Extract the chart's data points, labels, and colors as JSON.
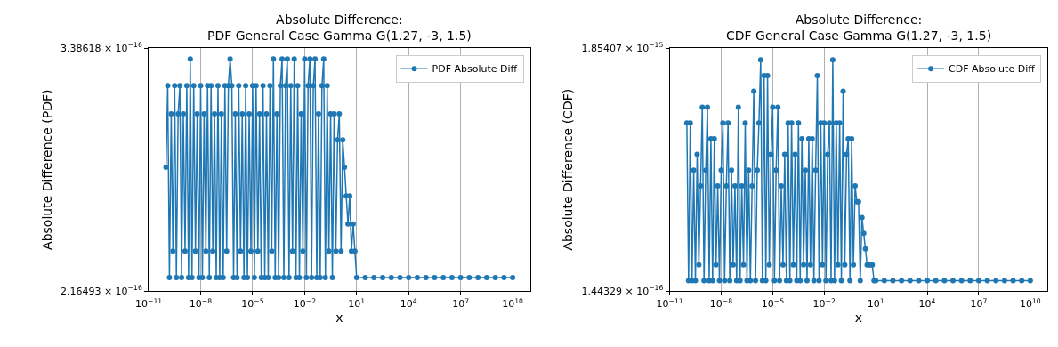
{
  "chart_data": [
    {
      "type": "line",
      "title": "Absolute Difference:\nPDF General Case Gamma G(1.27, -3, 1.5)",
      "xlabel": "x",
      "ylabel": "Absolute Difference (PDF)",
      "log": "xy",
      "grid": "x",
      "legend": "top right",
      "marker": "circle",
      "xlim": [
        1e-11,
        100000000000.0
      ],
      "xticks": [
        {
          "value": 1e-11,
          "label": "10$^{−11}$"
        },
        {
          "value": 1e-08,
          "label": "10$^{−8}$"
        },
        {
          "value": 1e-05,
          "label": "10$^{−5}$"
        },
        {
          "value": 0.01,
          "label": "10$^{−2}$"
        },
        {
          "value": 10,
          "label": "10$^{1}$"
        },
        {
          "value": 10000.0,
          "label": "10$^{4}$"
        },
        {
          "value": 10000000.0,
          "label": "10$^{7}$"
        },
        {
          "value": 10000000000.0,
          "label": "10$^{10}$"
        }
      ],
      "ylim": [
        2.16493e-16,
        3.38618e-16
      ],
      "yticks": [
        {
          "value": 2.16493e-16,
          "label": "2.16493 × 10$^{−16}$"
        },
        {
          "value": 3.38618e-16,
          "label": "3.38618 × 10$^{−16}$"
        }
      ],
      "x": [
        1e-10,
        1.26e-10,
        1.58e-10,
        2e-10,
        2.51e-10,
        3.16e-10,
        3.98e-10,
        5.01e-10,
        6.31e-10,
        7.94e-10,
        1e-09,
        1.26e-09,
        1.58e-09,
        2e-09,
        2.51e-09,
        3.16e-09,
        3.98e-09,
        5.01e-09,
        6.31e-09,
        7.94e-09,
        1e-08,
        1.26e-08,
        1.58e-08,
        2e-08,
        2.51e-08,
        3.16e-08,
        3.98e-08,
        5.01e-08,
        6.31e-08,
        7.94e-08,
        1e-07,
        1.26e-07,
        1.58e-07,
        2e-07,
        2.51e-07,
        3.16e-07,
        3.98e-07,
        5.01e-07,
        6.31e-07,
        7.94e-07,
        1e-06,
        1.26e-06,
        1.58e-06,
        2e-06,
        2.51e-06,
        3.16e-06,
        3.98e-06,
        5.01e-06,
        6.31e-06,
        7.94e-06,
        1e-05,
        1.26e-05,
        1.58e-05,
        2e-05,
        2.51e-05,
        3.16e-05,
        3.98e-05,
        5.01e-05,
        6.31e-05,
        7.94e-05,
        0.0001,
        0.000126,
        0.000158,
        0.0002,
        0.000251,
        0.000316,
        0.000398,
        0.000501,
        0.000631,
        0.000794,
        0.001,
        0.00126,
        0.00158,
        0.002,
        0.00251,
        0.00316,
        0.00398,
        0.00501,
        0.00631,
        0.00794,
        0.01,
        0.0126,
        0.0158,
        0.02,
        0.0251,
        0.0316,
        0.0398,
        0.0501,
        0.0631,
        0.0794,
        0.1,
        0.126,
        0.158,
        0.2,
        0.251,
        0.316,
        0.398,
        0.501,
        0.631,
        0.794,
        1,
        1.26,
        1.58,
        2,
        2.51,
        3.16,
        3.98,
        5.01,
        6.31,
        7.94,
        10,
        31.6,
        100,
        316,
        1000,
        3160,
        10000.0,
        31600.0,
        100000.0,
        316000.0,
        1000000.0,
        3160000.0,
        10000000.0,
        31600000.0,
        100000000.0,
        316000000.0,
        1000000000.0,
        3160000000.0,
        10000000000.0
      ],
      "series": [
        {
          "name": "PDF Absolute Diff",
          "color": "#1f77b4",
          "values": [
            2.72e-16,
            3.16e-16,
            2.22e-16,
            3e-16,
            2.33e-16,
            3.16e-16,
            2.22e-16,
            3e-16,
            3.16e-16,
            2.22e-16,
            3e-16,
            2.33e-16,
            3.16e-16,
            2.22e-16,
            3.32e-16,
            2.22e-16,
            3.16e-16,
            2.33e-16,
            3e-16,
            2.22e-16,
            3.16e-16,
            2.22e-16,
            3e-16,
            2.33e-16,
            3.16e-16,
            2.22e-16,
            3.16e-16,
            2.33e-16,
            3e-16,
            2.22e-16,
            3.16e-16,
            2.22e-16,
            3e-16,
            2.22e-16,
            3.16e-16,
            2.33e-16,
            3.16e-16,
            3.32e-16,
            3.16e-16,
            2.22e-16,
            3e-16,
            2.22e-16,
            3.16e-16,
            2.33e-16,
            3e-16,
            2.22e-16,
            3.16e-16,
            2.22e-16,
            3e-16,
            2.33e-16,
            3.16e-16,
            2.22e-16,
            3.16e-16,
            2.33e-16,
            3e-16,
            2.22e-16,
            3.16e-16,
            2.22e-16,
            3e-16,
            2.22e-16,
            3.16e-16,
            2.33e-16,
            3.32e-16,
            2.22e-16,
            3e-16,
            2.22e-16,
            3.16e-16,
            3.32e-16,
            2.22e-16,
            3.16e-16,
            3.32e-16,
            2.22e-16,
            3.16e-16,
            2.33e-16,
            3.32e-16,
            2.22e-16,
            3.16e-16,
            2.22e-16,
            3e-16,
            2.33e-16,
            3.32e-16,
            2.22e-16,
            3.16e-16,
            3.32e-16,
            2.22e-16,
            3.16e-16,
            3.32e-16,
            2.22e-16,
            3e-16,
            2.22e-16,
            3.16e-16,
            3.32e-16,
            2.22e-16,
            3.16e-16,
            2.33e-16,
            3e-16,
            2.22e-16,
            3e-16,
            2.33e-16,
            2.86e-16,
            3e-16,
            2.33e-16,
            2.86e-16,
            2.72e-16,
            2.58e-16,
            2.45e-16,
            2.58e-16,
            2.33e-16,
            2.45e-16,
            2.33e-16,
            2.22e-16,
            2.22e-16,
            2.22e-16,
            2.22e-16,
            2.22e-16,
            2.22e-16,
            2.22e-16,
            2.22e-16,
            2.22e-16,
            2.22e-16,
            2.22e-16,
            2.22e-16,
            2.22e-16,
            2.22e-16,
            2.22e-16,
            2.22e-16,
            2.22e-16,
            2.22e-16,
            2.22e-16
          ]
        }
      ]
    },
    {
      "type": "line",
      "title": "Absolute Difference:\nCDF General Case Gamma G(1.27, -3, 1.5)",
      "xlabel": "x",
      "ylabel": "Absolute Difference (CDF)",
      "log": "xy",
      "grid": "x",
      "legend": "top right",
      "marker": "circle",
      "xlim": [
        1e-11,
        100000000000.0
      ],
      "xticks": [
        {
          "value": 1e-11,
          "label": "10$^{−11}$"
        },
        {
          "value": 1e-08,
          "label": "10$^{−8}$"
        },
        {
          "value": 1e-05,
          "label": "10$^{−5}$"
        },
        {
          "value": 0.01,
          "label": "10$^{−2}$"
        },
        {
          "value": 10,
          "label": "10$^{1}$"
        },
        {
          "value": 10000.0,
          "label": "10$^{4}$"
        },
        {
          "value": 10000000.0,
          "label": "10$^{7}$"
        },
        {
          "value": 10000000000.0,
          "label": "10$^{10}$"
        }
      ],
      "ylim": [
        1.44329e-16,
        1.85407e-15
      ],
      "yticks": [
        {
          "value": 1.44329e-16,
          "label": "1.44329 × 10$^{−16}$"
        },
        {
          "value": 1.85407e-15,
          "label": "1.85407 × 10$^{−15}$"
        }
      ],
      "x": [
        1e-10,
        1.26e-10,
        1.58e-10,
        2e-10,
        2.51e-10,
        3.16e-10,
        3.98e-10,
        5.01e-10,
        6.31e-10,
        7.94e-10,
        1e-09,
        1.26e-09,
        1.58e-09,
        2e-09,
        2.51e-09,
        3.16e-09,
        3.98e-09,
        5.01e-09,
        6.31e-09,
        7.94e-09,
        1e-08,
        1.26e-08,
        1.58e-08,
        2e-08,
        2.51e-08,
        3.16e-08,
        3.98e-08,
        5.01e-08,
        6.31e-08,
        7.94e-08,
        1e-07,
        1.26e-07,
        1.58e-07,
        2e-07,
        2.51e-07,
        3.16e-07,
        3.98e-07,
        5.01e-07,
        6.31e-07,
        7.94e-07,
        1e-06,
        1.26e-06,
        1.58e-06,
        2e-06,
        2.51e-06,
        3.16e-06,
        3.98e-06,
        5.01e-06,
        6.31e-06,
        7.94e-06,
        1e-05,
        1.26e-05,
        1.58e-05,
        2e-05,
        2.51e-05,
        3.16e-05,
        3.98e-05,
        5.01e-05,
        6.31e-05,
        7.94e-05,
        0.0001,
        0.000126,
        0.000158,
        0.0002,
        0.000251,
        0.000316,
        0.000398,
        0.000501,
        0.000631,
        0.000794,
        0.001,
        0.00126,
        0.00158,
        0.002,
        0.00251,
        0.00316,
        0.00398,
        0.00501,
        0.00631,
        0.00794,
        0.01,
        0.0126,
        0.0158,
        0.02,
        0.0251,
        0.0316,
        0.0398,
        0.0501,
        0.0631,
        0.0794,
        0.1,
        0.126,
        0.158,
        0.2,
        0.251,
        0.316,
        0.398,
        0.501,
        0.631,
        0.794,
        1,
        1.26,
        1.58,
        2,
        2.51,
        3.16,
        3.98,
        5.01,
        6.31,
        7.94,
        10,
        31.6,
        100,
        316,
        1000,
        3160,
        10000.0,
        31600.0,
        100000.0,
        316000.0,
        1000000.0,
        3160000.0,
        10000000.0,
        31600000.0,
        100000000.0,
        316000000.0,
        1000000000.0,
        3160000000.0,
        10000000000.0
      ],
      "series": [
        {
          "name": "CDF Absolute Diff",
          "color": "#1f77b4",
          "values": [
            8.45e-16,
            1.61e-16,
            8.45e-16,
            1.61e-16,
            5.14e-16,
            1.61e-16,
            6.07e-16,
            1.9e-16,
            4.36e-16,
            9.97e-16,
            1.61e-16,
            5.14e-16,
            9.97e-16,
            1.61e-16,
            7.16e-16,
            1.61e-16,
            7.16e-16,
            1.9e-16,
            4.36e-16,
            1.61e-16,
            5.14e-16,
            8.45e-16,
            1.61e-16,
            4.36e-16,
            8.45e-16,
            1.61e-16,
            5.14e-16,
            1.9e-16,
            4.36e-16,
            1.61e-16,
            9.97e-16,
            1.61e-16,
            4.36e-16,
            1.9e-16,
            8.45e-16,
            1.61e-16,
            5.14e-16,
            1.61e-16,
            4.36e-16,
            1.18e-15,
            1.61e-16,
            5.14e-16,
            8.45e-16,
            1.64e-15,
            1.61e-16,
            1.39e-15,
            1.61e-16,
            1.39e-15,
            1.9e-16,
            6.07e-16,
            9.97e-16,
            1.61e-16,
            5.14e-16,
            9.97e-16,
            1.61e-16,
            4.36e-16,
            1.9e-16,
            6.07e-16,
            1.61e-16,
            8.45e-16,
            1.61e-16,
            8.45e-16,
            1.9e-16,
            6.07e-16,
            1.61e-16,
            8.45e-16,
            1.61e-16,
            7.16e-16,
            1.9e-16,
            5.14e-16,
            1.61e-16,
            7.16e-16,
            1.9e-16,
            7.16e-16,
            1.61e-16,
            5.14e-16,
            1.39e-15,
            1.61e-16,
            8.45e-16,
            1.9e-16,
            8.45e-16,
            1.61e-16,
            6.07e-16,
            8.45e-16,
            1.61e-16,
            1.64e-15,
            1.61e-16,
            8.45e-16,
            1.9e-16,
            8.45e-16,
            1.61e-16,
            1.18e-15,
            1.9e-16,
            6.07e-16,
            7.16e-16,
            1.61e-16,
            7.16e-16,
            1.9e-16,
            4.36e-16,
            3.69e-16,
            3.69e-16,
            1.61e-16,
            3.13e-16,
            2.65e-16,
            2.25e-16,
            1.9e-16,
            1.9e-16,
            1.9e-16,
            1.9e-16,
            1.61e-16,
            1.61e-16,
            1.61e-16,
            1.61e-16,
            1.61e-16,
            1.61e-16,
            1.61e-16,
            1.61e-16,
            1.61e-16,
            1.61e-16,
            1.61e-16,
            1.61e-16,
            1.61e-16,
            1.61e-16,
            1.61e-16,
            1.61e-16,
            1.61e-16,
            1.61e-16,
            1.61e-16,
            1.61e-16
          ]
        }
      ]
    }
  ]
}
